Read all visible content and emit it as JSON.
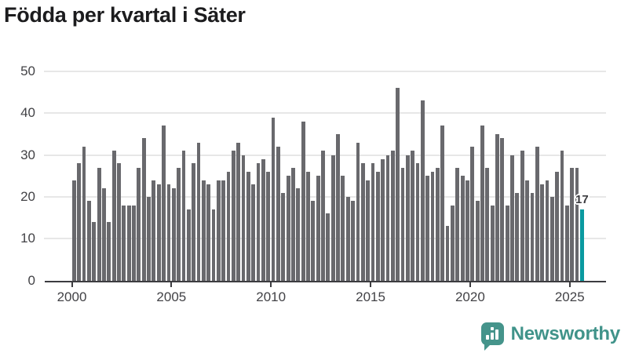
{
  "title": "Födda per kvartal i Säter",
  "chart_data": {
    "type": "bar",
    "title": "Födda per kvartal i Säter",
    "start_quarter": "2000 Q1",
    "end_quarter": "2025 Q3",
    "values": [
      24,
      28,
      32,
      19,
      14,
      27,
      22,
      14,
      31,
      28,
      18,
      18,
      18,
      27,
      34,
      20,
      24,
      23,
      37,
      23,
      22,
      27,
      31,
      17,
      28,
      33,
      24,
      23,
      17,
      24,
      24,
      26,
      31,
      33,
      30,
      26,
      23,
      28,
      29,
      26,
      39,
      32,
      21,
      25,
      27,
      22,
      38,
      26,
      19,
      25,
      31,
      16,
      30,
      35,
      25,
      20,
      19,
      33,
      28,
      24,
      28,
      26,
      29,
      30,
      31,
      46,
      27,
      30,
      31,
      28,
      43,
      25,
      26,
      27,
      37,
      13,
      18,
      27,
      25,
      24,
      32,
      19,
      37,
      27,
      18,
      35,
      34,
      18,
      30,
      21,
      31,
      24,
      21,
      32,
      23,
      24,
      20,
      26,
      31,
      18,
      27,
      27,
      17
    ],
    "y_ticks": [
      0,
      10,
      20,
      30,
      40,
      50
    ],
    "x_ticks": [
      "2000",
      "2005",
      "2010",
      "2015",
      "2020",
      "2025"
    ],
    "ylim": [
      0,
      50
    ],
    "grid": "horizontal",
    "highlight": {
      "position": "last",
      "value": 17,
      "label": "17"
    },
    "colors": {
      "bar": "#69696d",
      "highlight": "#0a9aa0",
      "grid": "#e7e7e7",
      "axis": "#3c3c40",
      "tick_label": "#424246",
      "title": "#1c1c1e"
    }
  },
  "branding": {
    "name": "Newsworthy",
    "color": "#45948b",
    "icon": "bar-chart-speech-bubble"
  }
}
